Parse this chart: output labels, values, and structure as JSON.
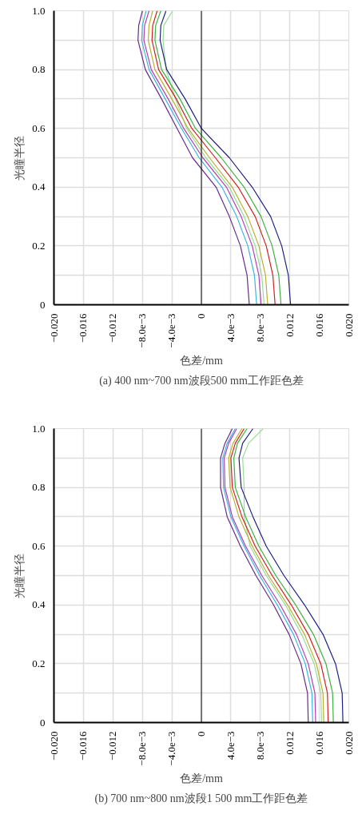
{
  "chart_data": [
    {
      "type": "line",
      "title": "(a) 400 nm~700 nm波段500 mm工作距色差",
      "xlabel": "色差/mm",
      "ylabel": "光瞳半径",
      "xlim": [
        -0.02,
        0.02
      ],
      "ylim": [
        0,
        1
      ],
      "xticks": [
        {
          "value": -0.02,
          "label": "−0.020"
        },
        {
          "value": -0.016,
          "label": "−0.016"
        },
        {
          "value": -0.012,
          "label": "−0.012"
        },
        {
          "value": -0.008,
          "label": "−8.0e−3"
        },
        {
          "value": -0.004,
          "label": "−4.0e−3"
        },
        0,
        {
          "value": 0.004,
          "label": "4.0e−3"
        },
        {
          "value": 0.008,
          "label": "8.0e−3"
        },
        {
          "value": 0.012,
          "label": "0.012"
        },
        {
          "value": 0.016,
          "label": "0.016"
        },
        {
          "value": 0.02,
          "label": "0.020"
        }
      ],
      "yticks": [
        0,
        {
          "value": 0.1,
          "label": null
        },
        0.2,
        {
          "value": 0.3,
          "label": null
        },
        0.4,
        {
          "value": 0.5,
          "label": null
        },
        0.6,
        {
          "value": 0.7,
          "label": null
        },
        0.8,
        {
          "value": 0.9,
          "label": null
        },
        {
          "value": 1,
          "label": "1.0"
        }
      ],
      "grid": true,
      "ref_lines": [
        {
          "axis": "x",
          "value": 0,
          "color": "#000000"
        }
      ],
      "series": [
        {
          "color": "#6a2a8a",
          "x": [
            0.0065,
            0.0062,
            0.0053,
            0.0038,
            0.002,
            -0.0012,
            -0.0033,
            -0.0054,
            -0.0076,
            -0.0086,
            -0.0085,
            -0.008
          ],
          "values": [
            0,
            0.1,
            0.2,
            0.3,
            0.4,
            0.5,
            0.6,
            0.7,
            0.8,
            0.9,
            0.95,
            1.0
          ]
        },
        {
          "color": "#3cb4e0",
          "x": [
            0.0075,
            0.0072,
            0.0063,
            0.0048,
            0.0028,
            -0.0003,
            -0.0027,
            -0.0049,
            -0.0071,
            -0.0081,
            -0.008,
            -0.0075
          ],
          "values": [
            0,
            0.1,
            0.2,
            0.3,
            0.4,
            0.5,
            0.6,
            0.7,
            0.8,
            0.9,
            0.95,
            1.0
          ]
        },
        {
          "color": "#b040b0",
          "x": [
            0.0081,
            0.0078,
            0.0069,
            0.0054,
            0.0034,
            0.0002,
            -0.0024,
            -0.0045,
            -0.0068,
            -0.0078,
            -0.0077,
            -0.0071
          ],
          "values": [
            0,
            0.1,
            0.2,
            0.3,
            0.4,
            0.5,
            0.6,
            0.7,
            0.8,
            0.9,
            0.95,
            1.0
          ]
        },
        {
          "color": "#98dc98",
          "x": [
            0.0085,
            0.0082,
            0.0073,
            0.0058,
            0.0038,
            0.0006,
            -0.002,
            -0.0035,
            -0.0048,
            -0.0052,
            -0.0051,
            -0.0039
          ],
          "values": [
            0,
            0.1,
            0.2,
            0.3,
            0.4,
            0.5,
            0.6,
            0.7,
            0.8,
            0.9,
            0.95,
            1.0
          ]
        },
        {
          "color": "#b8b030",
          "x": [
            0.009,
            0.0087,
            0.0078,
            0.0063,
            0.0042,
            0.0011,
            -0.0018,
            -0.004,
            -0.0063,
            -0.0072,
            -0.0071,
            -0.0066
          ],
          "values": [
            0,
            0.1,
            0.2,
            0.3,
            0.4,
            0.5,
            0.6,
            0.7,
            0.8,
            0.9,
            0.95,
            1.0
          ]
        },
        {
          "color": "#d02020",
          "x": [
            0.01,
            0.0097,
            0.0088,
            0.0073,
            0.005,
            0.0019,
            -0.0013,
            -0.0034,
            -0.0058,
            -0.0067,
            -0.0066,
            -0.006
          ],
          "values": [
            0,
            0.1,
            0.2,
            0.3,
            0.4,
            0.5,
            0.6,
            0.7,
            0.8,
            0.9,
            0.95,
            1.0
          ]
        },
        {
          "color": "#40b040",
          "x": [
            0.0108,
            0.0105,
            0.0096,
            0.0081,
            0.0058,
            0.0027,
            -0.0008,
            -0.0029,
            -0.0054,
            -0.0063,
            -0.0062,
            -0.0055
          ],
          "values": [
            0,
            0.1,
            0.2,
            0.3,
            0.4,
            0.5,
            0.6,
            0.7,
            0.8,
            0.9,
            0.95,
            1.0
          ]
        },
        {
          "color": "#202080",
          "x": [
            0.0121,
            0.0118,
            0.0109,
            0.0094,
            0.0069,
            0.0038,
            0.0,
            -0.0022,
            -0.0047,
            -0.0056,
            -0.0055,
            -0.0048
          ],
          "values": [
            0,
            0.1,
            0.2,
            0.3,
            0.4,
            0.5,
            0.6,
            0.7,
            0.8,
            0.9,
            0.95,
            1.0
          ]
        }
      ]
    },
    {
      "type": "line",
      "title": "(b) 700 nm~800 nm波段1 500 mm工作距色差",
      "xlabel": "色差/mm",
      "ylabel": "光瞳半径",
      "xlim": [
        -0.02,
        0.02
      ],
      "ylim": [
        0,
        1
      ],
      "xticks": [
        {
          "value": -0.02,
          "label": "−0.020"
        },
        {
          "value": -0.016,
          "label": "−0.016"
        },
        {
          "value": -0.012,
          "label": "−0.012"
        },
        {
          "value": -0.008,
          "label": "−8.0e−3"
        },
        {
          "value": -0.004,
          "label": "−4.0e−3"
        },
        0,
        {
          "value": 0.004,
          "label": "4.0e−3"
        },
        {
          "value": 0.008,
          "label": "8.0e−3"
        },
        {
          "value": 0.012,
          "label": "0.012"
        },
        {
          "value": 0.016,
          "label": "0.016"
        },
        {
          "value": 0.02,
          "label": "0.020"
        }
      ],
      "yticks": [
        0,
        {
          "value": 0.1,
          "label": null
        },
        0.2,
        {
          "value": 0.3,
          "label": null
        },
        0.4,
        {
          "value": 0.5,
          "label": null
        },
        0.6,
        {
          "value": 0.7,
          "label": null
        },
        0.8,
        {
          "value": 0.9,
          "label": null
        },
        {
          "value": 1,
          "label": "1.0"
        }
      ],
      "grid": true,
      "ref_lines": [
        {
          "axis": "x",
          "value": 0,
          "color": "#000000"
        }
      ],
      "series": [
        {
          "color": "#6a2a8a",
          "x": [
            0.0145,
            0.0144,
            0.0135,
            0.0119,
            0.0098,
            0.0074,
            0.0053,
            0.0035,
            0.0026,
            0.0026,
            0.0032,
            0.0042
          ],
          "values": [
            0,
            0.1,
            0.2,
            0.3,
            0.4,
            0.5,
            0.6,
            0.7,
            0.8,
            0.9,
            0.95,
            1.0
          ]
        },
        {
          "color": "#3cb4e0",
          "x": [
            0.0151,
            0.015,
            0.0141,
            0.0125,
            0.0103,
            0.0079,
            0.0058,
            0.004,
            0.003,
            0.0029,
            0.0035,
            0.0046
          ],
          "values": [
            0,
            0.1,
            0.2,
            0.3,
            0.4,
            0.5,
            0.6,
            0.7,
            0.8,
            0.9,
            0.95,
            1.0
          ]
        },
        {
          "color": "#b040b0",
          "x": [
            0.0155,
            0.0154,
            0.0145,
            0.0129,
            0.0107,
            0.0082,
            0.006,
            0.0042,
            0.0032,
            0.0031,
            0.0037,
            0.0048
          ],
          "values": [
            0,
            0.1,
            0.2,
            0.3,
            0.4,
            0.5,
            0.6,
            0.7,
            0.8,
            0.9,
            0.95,
            1.0
          ]
        },
        {
          "color": "#98dc98",
          "x": [
            0.0163,
            0.0162,
            0.0153,
            0.0136,
            0.0114,
            0.0088,
            0.0066,
            0.0058,
            0.0058,
            0.0056,
            0.0064,
            0.0084
          ],
          "values": [
            0,
            0.1,
            0.2,
            0.3,
            0.4,
            0.5,
            0.6,
            0.7,
            0.8,
            0.9,
            0.95,
            1.0
          ]
        },
        {
          "color": "#b8b030",
          "x": [
            0.0166,
            0.0165,
            0.0156,
            0.014,
            0.0117,
            0.0091,
            0.0069,
            0.0051,
            0.0039,
            0.0037,
            0.0043,
            0.0055
          ],
          "values": [
            0,
            0.1,
            0.2,
            0.3,
            0.4,
            0.5,
            0.6,
            0.7,
            0.8,
            0.9,
            0.95,
            1.0
          ]
        },
        {
          "color": "#d02020",
          "x": [
            0.0172,
            0.0171,
            0.0162,
            0.0145,
            0.0122,
            0.0096,
            0.0073,
            0.0055,
            0.0042,
            0.004,
            0.0046,
            0.0058
          ],
          "values": [
            0,
            0.1,
            0.2,
            0.3,
            0.4,
            0.5,
            0.6,
            0.7,
            0.8,
            0.9,
            0.95,
            1.0
          ]
        },
        {
          "color": "#40b040",
          "x": [
            0.0179,
            0.0178,
            0.0169,
            0.0152,
            0.0128,
            0.0101,
            0.0078,
            0.006,
            0.0046,
            0.0044,
            0.0049,
            0.0062
          ],
          "values": [
            0,
            0.1,
            0.2,
            0.3,
            0.4,
            0.5,
            0.6,
            0.7,
            0.8,
            0.9,
            0.95,
            1.0
          ]
        },
        {
          "color": "#202080",
          "x": [
            0.0192,
            0.0191,
            0.0182,
            0.0165,
            0.014,
            0.0112,
            0.0088,
            0.007,
            0.0054,
            0.0051,
            0.0056,
            0.007
          ],
          "values": [
            0,
            0.1,
            0.2,
            0.3,
            0.4,
            0.5,
            0.6,
            0.7,
            0.8,
            0.9,
            0.95,
            1.0
          ]
        }
      ]
    }
  ]
}
